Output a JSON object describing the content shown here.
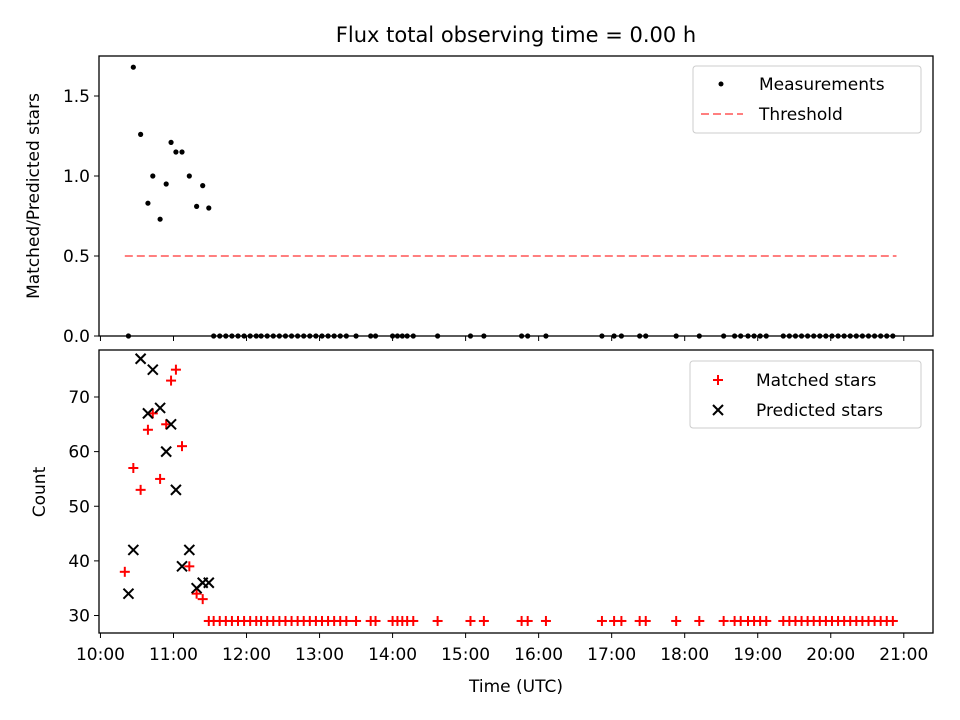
{
  "title": "Flux total observing time = 0.00 h",
  "xlabel": "Time (UTC)",
  "xticks": [
    "10:00",
    "11:00",
    "12:00",
    "13:00",
    "14:00",
    "15:00",
    "16:00",
    "17:00",
    "18:00",
    "19:00",
    "20:00",
    "21:00"
  ],
  "chart_data": [
    {
      "type": "scatter",
      "ylabel": "Matched/Predicted stars",
      "ylim": [
        0,
        1.75
      ],
      "yticks": [
        "0.0",
        "0.5",
        "1.0",
        "1.5"
      ],
      "xlim_hours": [
        9.98,
        21.4
      ],
      "legend_position": "top-right",
      "legend": [
        {
          "label": "Measurements",
          "marker": "dot",
          "color": "#000000"
        },
        {
          "label": "Threshold",
          "marker": "dashed-line",
          "color": "#ff7f7f"
        }
      ],
      "series": [
        {
          "name": "Measurements",
          "x": [
            "10:23",
            "10:27",
            "10:33",
            "10:39",
            "10:43",
            "10:49",
            "10:54",
            "10:58",
            "11:02",
            "11:07",
            "11:13",
            "11:19",
            "11:24",
            "11:29",
            "11:33",
            "11:38",
            "11:43",
            "11:48",
            "11:53",
            "11:58",
            "12:03",
            "12:08",
            "12:12",
            "12:17",
            "12:22",
            "12:27",
            "12:32",
            "12:37",
            "12:42",
            "12:47",
            "12:52",
            "12:57",
            "13:02",
            "13:07",
            "13:12",
            "13:17",
            "13:22",
            "13:30",
            "13:42",
            "13:46",
            "14:00",
            "14:04",
            "14:08",
            "14:12",
            "14:17",
            "14:37",
            "15:04",
            "15:15",
            "15:46",
            "15:51",
            "16:06",
            "16:52",
            "17:02",
            "17:08",
            "17:23",
            "17:28",
            "17:53",
            "18:12",
            "18:32",
            "18:41",
            "18:46",
            "18:52",
            "18:57",
            "19:02",
            "19:07",
            "19:21",
            "19:26",
            "19:31",
            "19:36",
            "19:41",
            "19:46",
            "19:51",
            "19:56",
            "20:01",
            "20:06",
            "20:11",
            "20:16",
            "20:21",
            "20:26",
            "20:31",
            "20:36",
            "20:41",
            "20:46",
            "20:51"
          ],
          "y": [
            0.0,
            1.68,
            1.26,
            0.83,
            1.0,
            0.73,
            0.95,
            1.21,
            1.15,
            1.15,
            1.0,
            0.81,
            0.94,
            0.8,
            0.0,
            0.0,
            0.0,
            0.0,
            0.0,
            0.0,
            0.0,
            0.0,
            0.0,
            0.0,
            0.0,
            0.0,
            0.0,
            0.0,
            0.0,
            0.0,
            0.0,
            0.0,
            0.0,
            0.0,
            0.0,
            0.0,
            0.0,
            0.0,
            0.0,
            0.0,
            0.0,
            0.0,
            0.0,
            0.0,
            0.0,
            0.0,
            0.0,
            0.0,
            0.0,
            0.0,
            0.0,
            0.0,
            0.0,
            0.0,
            0.0,
            0.0,
            0.0,
            0.0,
            0.0,
            0.0,
            0.0,
            0.0,
            0.0,
            0.0,
            0.0,
            0.0,
            0.0,
            0.0,
            0.0,
            0.0,
            0.0,
            0.0,
            0.0,
            0.0,
            0.0,
            0.0,
            0.0,
            0.0,
            0.0,
            0.0,
            0.0,
            0.0,
            0.0,
            0.0
          ]
        },
        {
          "name": "Threshold",
          "type": "line",
          "x": [
            "10:20",
            "20:54"
          ],
          "y": [
            0.5,
            0.5
          ]
        }
      ]
    },
    {
      "type": "scatter",
      "ylabel": "Count",
      "ylim": [
        26.8,
        78.6
      ],
      "yticks": [
        "30",
        "40",
        "50",
        "60",
        "70"
      ],
      "xlim_hours": [
        9.98,
        21.4
      ],
      "legend_position": "top-right",
      "legend": [
        {
          "label": "Matched stars",
          "marker": "plus",
          "color": "#ff0000"
        },
        {
          "label": "Predicted stars",
          "marker": "x",
          "color": "#000000"
        }
      ],
      "series": [
        {
          "name": "Matched stars",
          "x": [
            "10:20",
            "10:27",
            "10:33",
            "10:39",
            "10:43",
            "10:49",
            "10:54",
            "10:58",
            "11:02",
            "11:07",
            "11:13",
            "11:19",
            "11:24",
            "11:29",
            "11:33",
            "11:38",
            "11:43",
            "11:48",
            "11:53",
            "11:58",
            "12:03",
            "12:08",
            "12:12",
            "12:17",
            "12:22",
            "12:27",
            "12:32",
            "12:37",
            "12:42",
            "12:47",
            "12:52",
            "12:57",
            "13:02",
            "13:07",
            "13:12",
            "13:17",
            "13:22",
            "13:30",
            "13:42",
            "13:46",
            "14:00",
            "14:04",
            "14:08",
            "14:12",
            "14:17",
            "14:37",
            "15:04",
            "15:15",
            "15:46",
            "15:51",
            "16:06",
            "16:52",
            "17:02",
            "17:08",
            "17:23",
            "17:28",
            "17:53",
            "18:12",
            "18:32",
            "18:41",
            "18:46",
            "18:52",
            "18:57",
            "19:02",
            "19:07",
            "19:21",
            "19:26",
            "19:31",
            "19:36",
            "19:41",
            "19:46",
            "19:51",
            "19:56",
            "20:01",
            "20:06",
            "20:11",
            "20:16",
            "20:21",
            "20:26",
            "20:31",
            "20:36",
            "20:41",
            "20:46",
            "20:51"
          ],
          "y": [
            38,
            57,
            53,
            64,
            67,
            55,
            65,
            73,
            75,
            61,
            39,
            34,
            33,
            29,
            29,
            29,
            29,
            29,
            29,
            29,
            29,
            29,
            29,
            29,
            29,
            29,
            29,
            29,
            29,
            29,
            29,
            29,
            29,
            29,
            29,
            29,
            29,
            29,
            29,
            29,
            29,
            29,
            29,
            29,
            29,
            29,
            29,
            29,
            29,
            29,
            29,
            29,
            29,
            29,
            29,
            29,
            29,
            29,
            29,
            29,
            29,
            29,
            29,
            29,
            29,
            29,
            29,
            29,
            29,
            29,
            29,
            29,
            29,
            29,
            29,
            29,
            29,
            29,
            29,
            29,
            29,
            29,
            29,
            29
          ]
        },
        {
          "name": "Predicted stars",
          "x": [
            "10:23",
            "10:27",
            "10:33",
            "10:39",
            "10:43",
            "10:49",
            "10:54",
            "10:58",
            "11:02",
            "11:07",
            "11:13",
            "11:19",
            "11:24",
            "11:29"
          ],
          "y": [
            34,
            42,
            77,
            67,
            75,
            68,
            60,
            65,
            53,
            39,
            42,
            35,
            36,
            36
          ]
        }
      ]
    }
  ]
}
